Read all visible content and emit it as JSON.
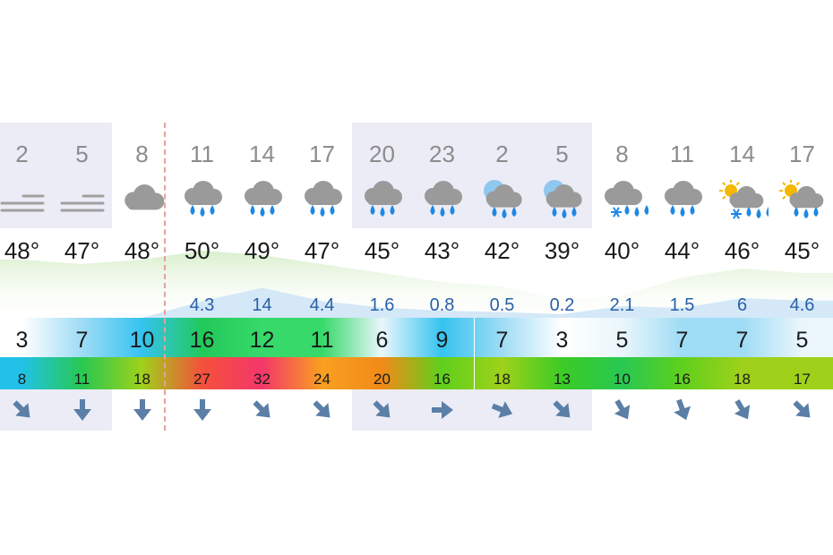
{
  "hours": [
    {
      "hour": "2",
      "icon": "fog-icon",
      "temp": "48°",
      "precip": "",
      "wind": "3",
      "gust": "8",
      "dir": 135,
      "night": true
    },
    {
      "hour": "5",
      "icon": "fog-icon",
      "temp": "47°",
      "precip": "",
      "wind": "7",
      "gust": "11",
      "dir": 180,
      "night": true
    },
    {
      "hour": "8",
      "icon": "cloud-icon",
      "temp": "48°",
      "precip": "",
      "wind": "10",
      "gust": "18",
      "dir": 180,
      "night": false
    },
    {
      "hour": "11",
      "icon": "rain-cloud-icon",
      "temp": "50°",
      "precip": "4.3",
      "wind": "16",
      "gust": "27",
      "dir": 180,
      "night": false
    },
    {
      "hour": "14",
      "icon": "rain-cloud-icon",
      "temp": "49°",
      "precip": "14",
      "wind": "12",
      "gust": "32",
      "dir": 135,
      "night": false
    },
    {
      "hour": "17",
      "icon": "rain-cloud-icon",
      "temp": "47°",
      "precip": "4.4",
      "wind": "11",
      "gust": "24",
      "dir": 135,
      "night": false
    },
    {
      "hour": "20",
      "icon": "rain-cloud-icon",
      "temp": "45°",
      "precip": "1.6",
      "wind": "6",
      "gust": "20",
      "dir": 135,
      "night": true
    },
    {
      "hour": "23",
      "icon": "rain-cloud-icon",
      "temp": "43°",
      "precip": "0.8",
      "wind": "9",
      "gust": "16",
      "dir": 90,
      "night": true
    },
    {
      "hour": "2",
      "icon": "moon-rain-icon",
      "temp": "42°",
      "precip": "0.5",
      "wind": "7",
      "gust": "18",
      "dir": 112,
      "night": true
    },
    {
      "hour": "5",
      "icon": "moon-rain-icon",
      "temp": "39°",
      "precip": "0.2",
      "wind": "3",
      "gust": "13",
      "dir": 135,
      "night": true
    },
    {
      "hour": "8",
      "icon": "snow-rain-cloud-icon",
      "temp": "40°",
      "precip": "2.1",
      "wind": "5",
      "gust": "10",
      "dir": 150,
      "night": false
    },
    {
      "hour": "11",
      "icon": "rain-cloud-icon",
      "temp": "44°",
      "precip": "1.5",
      "wind": "7",
      "gust": "16",
      "dir": 160,
      "night": false
    },
    {
      "hour": "14",
      "icon": "sun-snow-rain-icon",
      "temp": "46°",
      "precip": "6",
      "wind": "7",
      "gust": "18",
      "dir": 150,
      "night": false
    },
    {
      "hour": "17",
      "icon": "sun-rain-cloud-icon",
      "temp": "45°",
      "precip": "4.6",
      "wind": "5",
      "gust": "17",
      "dir": 135,
      "night": false
    }
  ],
  "colors": {
    "night_shade": "#ececf6",
    "temp_fill": "#d8efcc",
    "precip_fill": "#cfe6f6",
    "precip_text": "#2a5fa8",
    "arrow": "#5b7fa6",
    "rain_drop": "#1e88e5",
    "cloud": "#9a9a9a",
    "sun": "#f5b800",
    "moon": "#8fc8ef"
  }
}
